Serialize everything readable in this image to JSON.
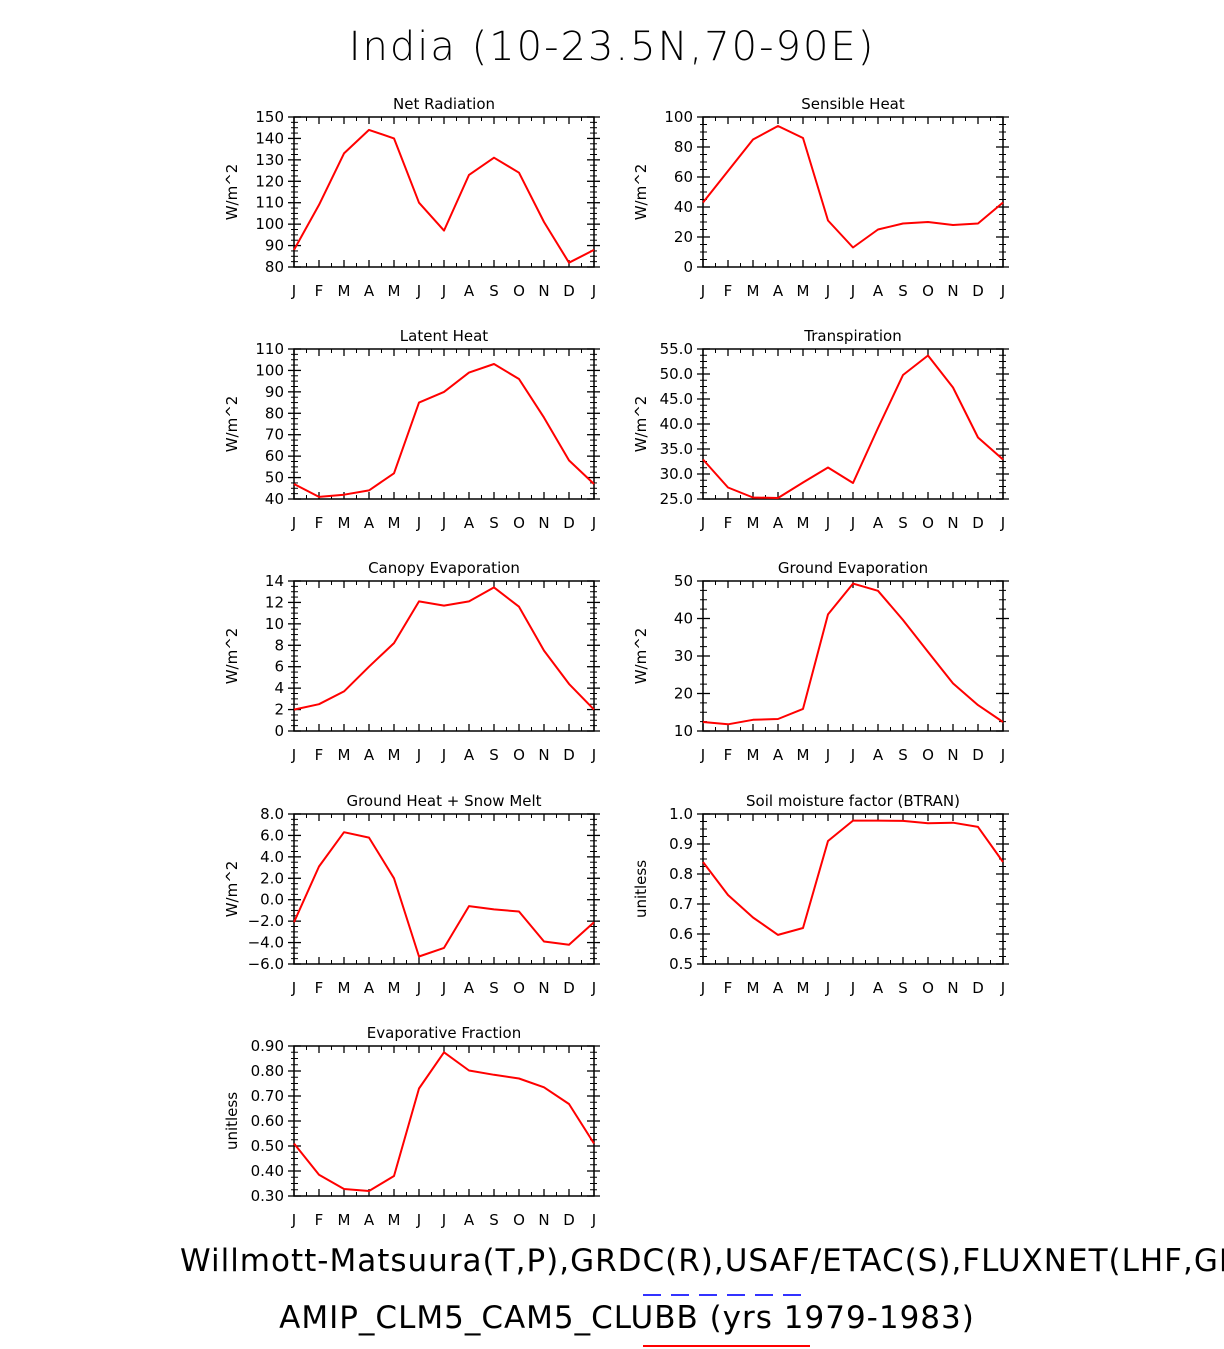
{
  "title": "India (10-23.5N,70-90E)",
  "footer_line1": "Willmott-Matsuura(T,P),GRDC(R),USAF/ETAC(S),FLUXNET(LHF,GPP)",
  "footer_line2": "AMIP_CLM5_CAM5_CLUBB (yrs 1979-1983)",
  "colors": {
    "series": "#ff0000",
    "link_blue": "#3333ff",
    "link_red": "#ff0000"
  },
  "chart_data": [
    {
      "type": "line",
      "title": "Net Radiation",
      "ylabel": "W/m^2",
      "x": [
        "J",
        "F",
        "M",
        "A",
        "M",
        "J",
        "J",
        "A",
        "S",
        "O",
        "N",
        "D",
        "J"
      ],
      "ylim": [
        80,
        150
      ],
      "yticks": [
        "80",
        "90",
        "100",
        "110",
        "120",
        "130",
        "140",
        "150"
      ],
      "yticks_values": [
        80,
        90,
        100,
        110,
        120,
        130,
        140,
        150
      ],
      "values": [
        88,
        109,
        133,
        144,
        140,
        110,
        97,
        123,
        131,
        124,
        101,
        82,
        88
      ]
    },
    {
      "type": "line",
      "title": "Sensible Heat",
      "ylabel": "W/m^2",
      "x": [
        "J",
        "F",
        "M",
        "A",
        "M",
        "J",
        "J",
        "A",
        "S",
        "O",
        "N",
        "D",
        "J"
      ],
      "ylim": [
        0,
        100
      ],
      "yticks": [
        "0",
        "20",
        "40",
        "60",
        "80",
        "100"
      ],
      "yticks_values": [
        0,
        20,
        40,
        60,
        80,
        100
      ],
      "values": [
        43,
        64,
        85,
        94,
        86,
        31,
        13,
        25,
        29,
        30,
        28,
        29,
        43
      ]
    },
    {
      "type": "line",
      "title": "Latent Heat",
      "ylabel": "W/m^2",
      "x": [
        "J",
        "F",
        "M",
        "A",
        "M",
        "J",
        "J",
        "A",
        "S",
        "O",
        "N",
        "D",
        "J"
      ],
      "ylim": [
        40,
        110
      ],
      "yticks": [
        "40",
        "50",
        "60",
        "70",
        "80",
        "90",
        "100",
        "110"
      ],
      "yticks_values": [
        40,
        50,
        60,
        70,
        80,
        90,
        100,
        110
      ],
      "values": [
        47,
        41,
        42,
        44,
        52,
        85,
        90,
        99,
        103,
        96,
        78,
        58,
        47
      ]
    },
    {
      "type": "line",
      "title": "Transpiration",
      "ylabel": "W/m^2",
      "x": [
        "J",
        "F",
        "M",
        "A",
        "M",
        "J",
        "J",
        "A",
        "S",
        "O",
        "N",
        "D",
        "J"
      ],
      "ylim": [
        25,
        55
      ],
      "yticks": [
        "25.0",
        "30.0",
        "35.0",
        "40.0",
        "45.0",
        "50.0",
        "55.0"
      ],
      "yticks_values": [
        25,
        30,
        35,
        40,
        45,
        50,
        55
      ],
      "values": [
        32.9,
        27.3,
        25.3,
        25.2,
        28.3,
        31.3,
        28.2,
        39.2,
        49.8,
        53.7,
        47.3,
        37.3,
        32.9
      ]
    },
    {
      "type": "line",
      "title": "Canopy Evaporation",
      "ylabel": "W/m^2",
      "x": [
        "J",
        "F",
        "M",
        "A",
        "M",
        "J",
        "J",
        "A",
        "S",
        "O",
        "N",
        "D",
        "J"
      ],
      "ylim": [
        0,
        14
      ],
      "yticks": [
        "0",
        "2",
        "4",
        "6",
        "8",
        "10",
        "12",
        "14"
      ],
      "yticks_values": [
        0,
        2,
        4,
        6,
        8,
        10,
        12,
        14
      ],
      "values": [
        2.0,
        2.5,
        3.7,
        6.0,
        8.2,
        12.1,
        11.7,
        12.1,
        13.4,
        11.6,
        7.5,
        4.4,
        2.0
      ]
    },
    {
      "type": "line",
      "title": "Ground Evaporation",
      "ylabel": "W/m^2",
      "x": [
        "J",
        "F",
        "M",
        "A",
        "M",
        "J",
        "J",
        "A",
        "S",
        "O",
        "N",
        "D",
        "J"
      ],
      "ylim": [
        10,
        50
      ],
      "yticks": [
        "10",
        "20",
        "30",
        "40",
        "50"
      ],
      "yticks_values": [
        10,
        20,
        30,
        40,
        50
      ],
      "values": [
        12.4,
        11.8,
        13.0,
        13.2,
        15.9,
        41.1,
        49.3,
        47.4,
        39.6,
        31.1,
        22.7,
        16.9,
        12.4
      ]
    },
    {
      "type": "line",
      "title": "Ground Heat + Snow Melt",
      "ylabel": "W/m^2",
      "x": [
        "J",
        "F",
        "M",
        "A",
        "M",
        "J",
        "J",
        "A",
        "S",
        "O",
        "N",
        "D",
        "J"
      ],
      "ylim": [
        -6,
        8
      ],
      "yticks": [
        "−6.0",
        "−4.0",
        "−2.0",
        "0.0",
        "2.0",
        "4.0",
        "6.0",
        "8.0"
      ],
      "yticks_values": [
        -6,
        -4,
        -2,
        0,
        2,
        4,
        6,
        8
      ],
      "values": [
        -2.1,
        3.1,
        6.3,
        5.8,
        2.0,
        -5.3,
        -4.5,
        -0.6,
        -0.9,
        -1.1,
        -3.9,
        -4.2,
        -2.1
      ]
    },
    {
      "type": "line",
      "title": "Soil moisture factor (BTRAN)",
      "ylabel": "unitless",
      "x": [
        "J",
        "F",
        "M",
        "A",
        "M",
        "J",
        "J",
        "A",
        "S",
        "O",
        "N",
        "D",
        "J"
      ],
      "ylim": [
        0.5,
        1.0
      ],
      "yticks": [
        "0.5",
        "0.6",
        "0.7",
        "0.8",
        "0.9",
        "1.0"
      ],
      "yticks_values": [
        0.5,
        0.6,
        0.7,
        0.8,
        0.9,
        1.0
      ],
      "values": [
        0.84,
        0.73,
        0.655,
        0.597,
        0.62,
        0.91,
        0.978,
        0.978,
        0.977,
        0.969,
        0.971,
        0.957,
        0.84
      ]
    },
    {
      "type": "line",
      "title": "Evaporative Fraction",
      "ylabel": "unitless",
      "x": [
        "J",
        "F",
        "M",
        "A",
        "M",
        "J",
        "J",
        "A",
        "S",
        "O",
        "N",
        "D",
        "J"
      ],
      "ylim": [
        0.3,
        0.9
      ],
      "yticks": [
        "0.30",
        "0.40",
        "0.50",
        "0.60",
        "0.70",
        "0.80",
        "0.90"
      ],
      "yticks_values": [
        0.3,
        0.4,
        0.5,
        0.6,
        0.7,
        0.8,
        0.9
      ],
      "values": [
        0.51,
        0.385,
        0.328,
        0.32,
        0.38,
        0.73,
        0.875,
        0.802,
        0.785,
        0.77,
        0.735,
        0.668,
        0.51
      ]
    }
  ]
}
